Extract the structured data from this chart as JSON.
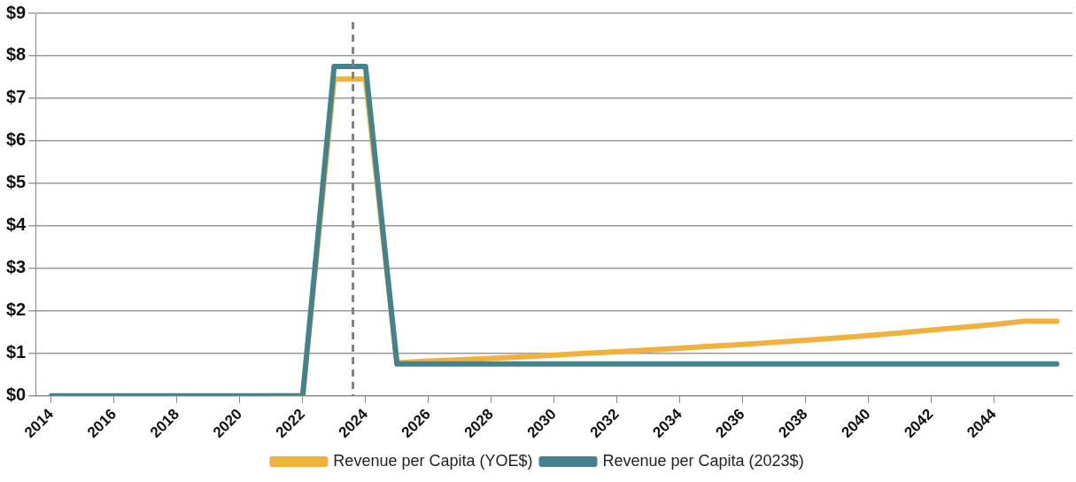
{
  "chart_data": {
    "type": "line",
    "x": [
      2014,
      2015,
      2016,
      2017,
      2018,
      2019,
      2020,
      2021,
      2022,
      2023,
      2024,
      2025,
      2026,
      2027,
      2028,
      2029,
      2030,
      2031,
      2032,
      2033,
      2034,
      2035,
      2036,
      2037,
      2038,
      2039,
      2040,
      2041,
      2042,
      2043,
      2044,
      2045,
      2046
    ],
    "series": [
      {
        "name": "Revenue per Capita (YOE$)",
        "color": "#f0b23c",
        "values": [
          null,
          null,
          null,
          null,
          null,
          null,
          null,
          0,
          0,
          7.45,
          7.45,
          0.78,
          0.82,
          0.85,
          0.88,
          0.92,
          0.96,
          1.0,
          1.04,
          1.08,
          1.12,
          1.17,
          1.21,
          1.26,
          1.31,
          1.36,
          1.42,
          1.48,
          1.55,
          1.61,
          1.68,
          1.76,
          1.76
        ]
      },
      {
        "name": "Revenue per Capita (2023$)",
        "color": "#44838c",
        "values": [
          0,
          0,
          0,
          0,
          0,
          0,
          0,
          0,
          0,
          7.75,
          7.75,
          0.75,
          0.75,
          0.75,
          0.75,
          0.75,
          0.75,
          0.75,
          0.75,
          0.75,
          0.75,
          0.75,
          0.75,
          0.75,
          0.75,
          0.75,
          0.75,
          0.75,
          0.75,
          0.75,
          0.75,
          0.75,
          0.75
        ]
      }
    ],
    "xlim": [
      2013.5,
      2046.5
    ],
    "xticks": [
      2014,
      2016,
      2018,
      2020,
      2022,
      2024,
      2026,
      2028,
      2030,
      2032,
      2034,
      2036,
      2038,
      2040,
      2042,
      2044
    ],
    "ylim": [
      0,
      9
    ],
    "yticks": [
      {
        "value": 0,
        "label": "$0"
      },
      {
        "value": 1,
        "label": "$1"
      },
      {
        "value": 2,
        "label": "$2"
      },
      {
        "value": 3,
        "label": "$3"
      },
      {
        "value": 4,
        "label": "$4"
      },
      {
        "value": 5,
        "label": "$5"
      },
      {
        "value": 6,
        "label": "$6"
      },
      {
        "value": 7,
        "label": "$7"
      },
      {
        "value": 8,
        "label": "$8"
      },
      {
        "value": 9,
        "label": "$9"
      }
    ],
    "ref_lines": [
      {
        "axis": "x",
        "value": 2023.6,
        "color": "#808080",
        "line_style": "dashed"
      }
    ],
    "grid": "y",
    "legend": "bottom",
    "marker": "none",
    "line_style": "solid"
  }
}
